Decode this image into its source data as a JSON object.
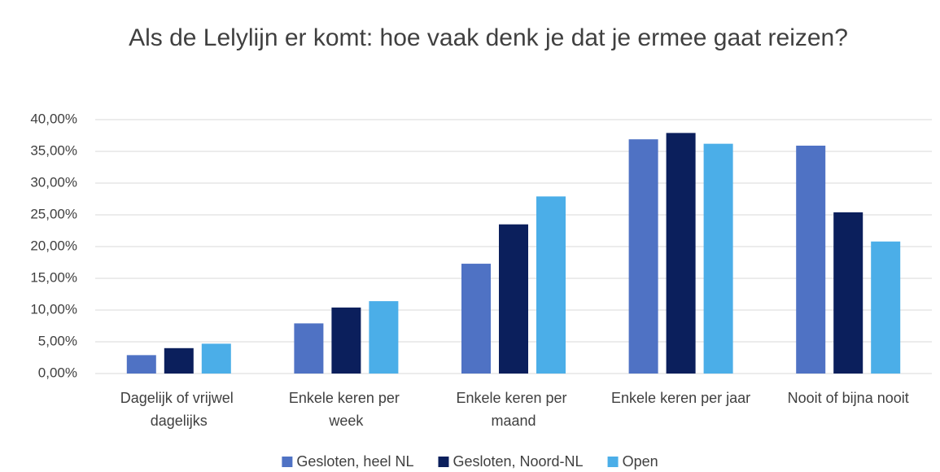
{
  "chart_data": {
    "type": "bar",
    "title": "Als de Lelylijn er komt: hoe vaak denk je dat je ermee gaat reizen?",
    "categories": [
      "Dagelijk of vrijwel dagelijks",
      "Enkele keren per week",
      "Enkele keren per maand",
      "Enkele keren per jaar",
      "Nooit of bijna nooit"
    ],
    "series": [
      {
        "name": "Gesloten, heel NL",
        "color": "#4f72c4",
        "values": [
          2.9,
          7.9,
          17.3,
          36.9,
          35.9
        ]
      },
      {
        "name": "Gesloten, Noord-NL",
        "color": "#0b1f5c",
        "values": [
          4.0,
          10.4,
          23.5,
          37.9,
          25.4
        ]
      },
      {
        "name": "Open",
        "color": "#4baee8",
        "values": [
          4.7,
          11.4,
          27.9,
          36.2,
          20.8
        ]
      }
    ],
    "ylim": [
      0,
      40
    ],
    "yticks": [
      {
        "value": 0,
        "label": "0,00%"
      },
      {
        "value": 5,
        "label": "5,00%"
      },
      {
        "value": 10,
        "label": "10,00%"
      },
      {
        "value": 15,
        "label": "15,00%"
      },
      {
        "value": 20,
        "label": "20,00%"
      },
      {
        "value": 25,
        "label": "25,00%"
      },
      {
        "value": 30,
        "label": "30,00%"
      },
      {
        "value": 35,
        "label": "35,00%"
      },
      {
        "value": 40,
        "label": "40,00%"
      }
    ],
    "grid": true,
    "legend": "bottom"
  }
}
